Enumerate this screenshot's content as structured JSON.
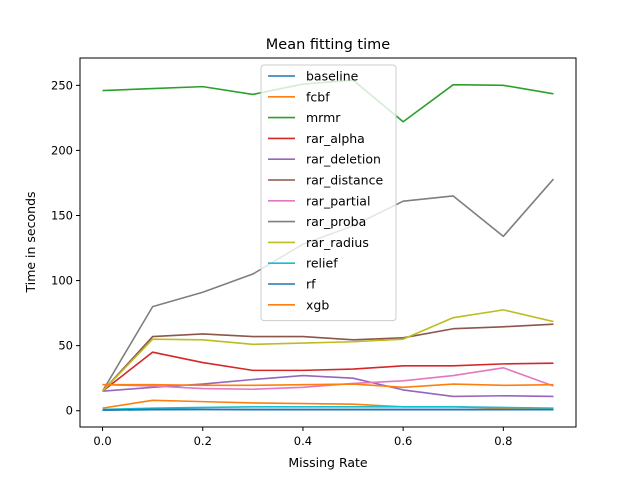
{
  "chart_data": {
    "type": "line",
    "title": "Mean fitting time",
    "xlabel": "Missing Rate",
    "ylabel": "Time in seconds",
    "xlim": [
      -0.045,
      0.945
    ],
    "ylim": [
      -12.5,
      271
    ],
    "xticks": [
      0.0,
      0.2,
      0.4,
      0.6,
      0.8
    ],
    "xtick_labels": [
      "0.0",
      "0.2",
      "0.4",
      "0.6",
      "0.8"
    ],
    "yticks": [
      0,
      50,
      100,
      150,
      200,
      250
    ],
    "ytick_labels": [
      "0",
      "50",
      "100",
      "150",
      "200",
      "250"
    ],
    "grid": false,
    "legend_position": "upper-center",
    "x": [
      0.0,
      0.1,
      0.2,
      0.3,
      0.4,
      0.5,
      0.6,
      0.7,
      0.8,
      0.9
    ],
    "series": [
      {
        "name": "baseline",
        "color": "#1f77b4",
        "values": [
          0.5,
          0.8,
          1.0,
          1.0,
          1.0,
          1.0,
          1.0,
          1.0,
          1.0,
          1.0
        ]
      },
      {
        "name": "fcbf",
        "color": "#ff7f0e",
        "values": [
          2.0,
          8.0,
          7.0,
          6.0,
          5.5,
          5.0,
          3.0,
          3.0,
          2.0,
          1.5
        ]
      },
      {
        "name": "mrmr",
        "color": "#2ca02c",
        "values": [
          246,
          247.5,
          249,
          243,
          251,
          254,
          222,
          250.5,
          250,
          243.5
        ]
      },
      {
        "name": "rar_alpha",
        "color": "#d62728",
        "values": [
          15,
          45,
          37,
          31,
          31,
          32,
          34.5,
          34.5,
          36,
          36.5
        ]
      },
      {
        "name": "rar_deletion",
        "color": "#9467bd",
        "values": [
          15,
          18,
          20.5,
          24,
          27,
          25,
          16,
          11,
          11.5,
          11
        ]
      },
      {
        "name": "rar_distance",
        "color": "#8c564b",
        "values": [
          15,
          57,
          59,
          57,
          57,
          54.5,
          56,
          63,
          64.5,
          66.5
        ]
      },
      {
        "name": "rar_partial",
        "color": "#e377c2",
        "values": [
          20,
          19,
          17,
          16.5,
          18,
          21,
          23,
          27,
          33,
          19
        ]
      },
      {
        "name": "rar_proba",
        "color": "#7f7f7f",
        "values": [
          15,
          80,
          91,
          105,
          128,
          142,
          161,
          165,
          134,
          178
        ]
      },
      {
        "name": "rar_radius",
        "color": "#bcbd22",
        "values": [
          15,
          55,
          54.5,
          51,
          52,
          53,
          55,
          71.5,
          77.5,
          68.5
        ]
      },
      {
        "name": "relief",
        "color": "#17becf",
        "values": [
          1.0,
          2.0,
          2.5,
          3.0,
          3.0,
          3.0,
          3.0,
          3.0,
          2.5,
          2.0
        ]
      },
      {
        "name": "rf",
        "color": "#1f77b4",
        "values": [
          0.5,
          1.0,
          1.0,
          0.8,
          0.8,
          0.8,
          0.8,
          0.8,
          0.8,
          0.8
        ]
      },
      {
        "name": "xgb",
        "color": "#ff7f0e",
        "values": [
          20,
          20,
          19.5,
          19.5,
          20,
          20.5,
          18,
          20.5,
          19.5,
          20
        ]
      }
    ]
  }
}
